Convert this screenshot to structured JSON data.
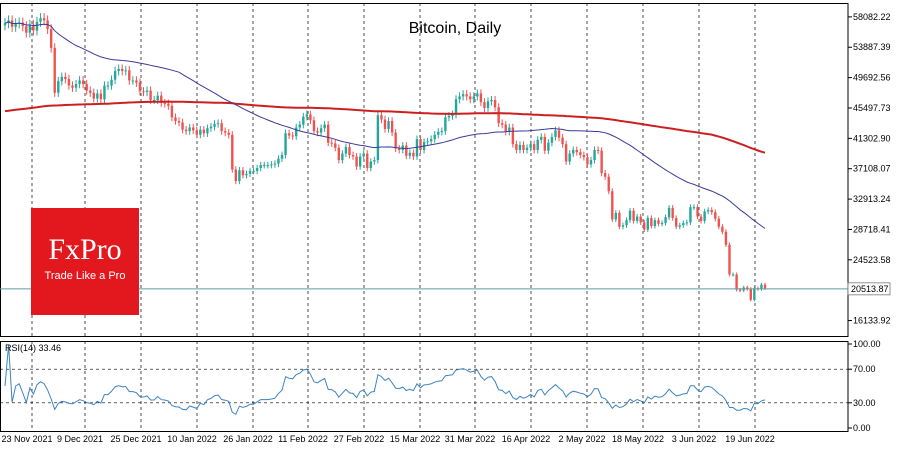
{
  "chart_data": [
    {
      "type": "candlestick",
      "title": "Bitcoin, Daily",
      "ylim": [
        14000,
        60000
      ],
      "y_ticks": [
        "58082.22",
        "53887.39",
        "49692.56",
        "45497.73",
        "41302.90",
        "37108.07",
        "32913.24",
        "28718.41",
        "24523.58",
        "20513.87",
        "16133.92"
      ],
      "current_price": "20513.87",
      "x_labels": [
        "23 Nov 2021",
        "9 Dec 2021",
        "25 Dec 2021",
        "10 Jan 2022",
        "26 Jan 2022",
        "11 Feb 2022",
        "27 Feb 2022",
        "15 Mar 2022",
        "31 Mar 2022",
        "16 Apr 2022",
        "2 May 2022",
        "18 May 2022",
        "3 Jun 2022",
        "19 Jun 2022"
      ],
      "colors": {
        "up": "#26a69a",
        "down": "#ef5350",
        "ma_fast": "#3a3a9a",
        "ma_slow": "#cc2020",
        "price_line": "#5b9ea0",
        "grid": "#000000"
      },
      "close": [
        57200,
        57600,
        56700,
        57200,
        57300,
        56800,
        55900,
        57000,
        56200,
        57400,
        57900,
        57600,
        56400,
        53800,
        47600,
        49200,
        49800,
        49500,
        48600,
        48300,
        48800,
        49300,
        48800,
        47900,
        47600,
        46800,
        47500,
        46700,
        48600,
        48600,
        49400,
        50600,
        50900,
        50600,
        50700,
        49300,
        49300,
        49000,
        47800,
        47700,
        47900,
        46600,
        46600,
        47200,
        46200,
        46100,
        45800,
        44200,
        43700,
        43500,
        42500,
        42300,
        42800,
        42400,
        41800,
        42500,
        42000,
        42700,
        42900,
        43300,
        43400,
        42300,
        42100,
        41800,
        37000,
        35400,
        36900,
        36200,
        36400,
        36800,
        36800,
        37200,
        37600,
        37600,
        37600,
        37700,
        37800,
        38500,
        39000,
        42000,
        41700,
        41600,
        42800,
        43200,
        44300,
        44600,
        43800,
        42300,
        42100,
        42700,
        43200,
        40700,
        40600,
        40000,
        38300,
        39200,
        40100,
        39000,
        38800,
        37400,
        38800,
        39200,
        37200,
        38100,
        38300,
        44500,
        43900,
        42600,
        43700,
        42100,
        39900,
        39700,
        40300,
        38900,
        39300,
        38800,
        41200,
        39700,
        40800,
        40900,
        41200,
        41800,
        42200,
        42300,
        44200,
        44400,
        44600,
        46700,
        47100,
        47400,
        47100,
        46700,
        47100,
        47500,
        46300,
        45500,
        46400,
        46600,
        45600,
        43400,
        43200,
        42200,
        42800,
        40500,
        39700,
        40400,
        39700,
        40000,
        40500,
        39700,
        41100,
        41500,
        39600,
        40700,
        41500,
        42400,
        41400,
        40500,
        38100,
        39200,
        39700,
        39400,
        39000,
        38700,
        37700,
        38300,
        39700,
        39600,
        36500,
        36000,
        34000,
        30100,
        31000,
        29100,
        29300,
        30000,
        31300,
        29900,
        30500,
        29700,
        28700,
        30300,
        29200,
        30000,
        29500,
        29600,
        30400,
        31700,
        30300,
        29100,
        29300,
        29600,
        29700,
        31800,
        31800,
        30500,
        29900,
        31200,
        31400,
        31100,
        30200,
        29100,
        28400,
        26600,
        22500,
        22500,
        20400,
        20300,
        20700,
        20500,
        19000,
        20600,
        20500,
        21100,
        20600
      ],
      "rsi_window": "RSI(14) 33.46",
      "rsi_value": 33.46,
      "rsi_ticks": [
        "100.00",
        "70.00",
        "30.00",
        "0.00"
      ],
      "rsi_levels": [
        70,
        30
      ],
      "rsi_ylim": [
        0,
        100
      ]
    }
  ],
  "branding": {
    "logo_text": "FxPro",
    "logo_tagline": "Trade Like a Pro"
  }
}
